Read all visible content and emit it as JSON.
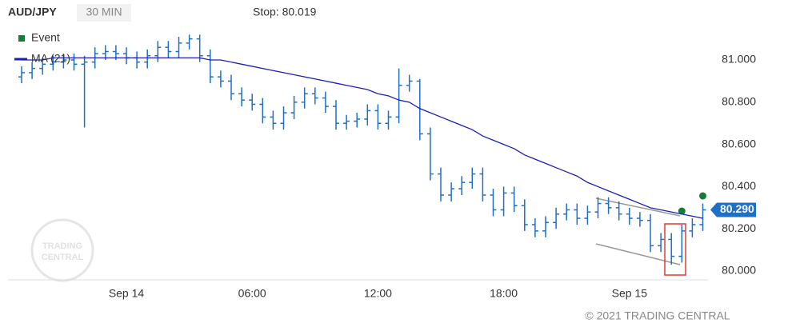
{
  "chart_data": {
    "type": "ohlc",
    "title": "AUD/JPY",
    "interval": "30 MIN",
    "stop_label": "Stop: 80.019",
    "watermark": [
      "TRADING",
      "CENTRAL"
    ],
    "copyright": "© 2021 TRADING CENTRAL",
    "categories": [
      null,
      null,
      null,
      null,
      null,
      null,
      null,
      null,
      null,
      null,
      "Sep 14",
      null,
      null,
      null,
      null,
      null,
      null,
      null,
      null,
      null,
      null,
      null,
      "06:00",
      null,
      null,
      null,
      null,
      null,
      null,
      null,
      null,
      null,
      null,
      null,
      "12:00",
      null,
      null,
      null,
      null,
      null,
      null,
      null,
      null,
      null,
      null,
      null,
      "18:00",
      null,
      null,
      null,
      null,
      null,
      null,
      null,
      null,
      null,
      null,
      null,
      "Sep 15",
      null,
      null,
      null,
      null,
      null,
      null,
      null
    ],
    "ohlc": {
      "color": "#1f6fc5",
      "open": [
        80.92,
        80.94,
        80.96,
        80.98,
        80.99,
        81.0,
        80.98,
        80.99,
        81.03,
        81.04,
        81.03,
        81.01,
        80.99,
        81.02,
        81.06,
        81.04,
        81.08,
        81.1,
        81.02,
        80.92,
        80.9,
        80.84,
        80.81,
        80.79,
        80.73,
        80.7,
        80.75,
        80.8,
        80.84,
        80.82,
        80.78,
        80.7,
        80.71,
        80.72,
        80.76,
        80.7,
        80.73,
        80.88,
        80.9,
        80.65,
        80.46,
        80.36,
        80.39,
        80.42,
        80.46,
        80.36,
        80.29,
        80.37,
        80.31,
        80.22,
        80.19,
        80.23,
        80.27,
        80.29,
        80.25,
        80.28,
        80.32,
        80.3,
        80.27,
        80.25,
        80.24,
        80.12,
        80.15,
        80.07,
        80.19,
        80.22
      ],
      "high": [
        80.97,
        80.99,
        81.01,
        81.02,
        81.03,
        81.03,
        81.02,
        81.06,
        81.07,
        81.07,
        81.06,
        81.04,
        81.05,
        81.09,
        81.09,
        81.11,
        81.12,
        81.12,
        81.05,
        80.95,
        80.93,
        80.87,
        80.84,
        80.82,
        80.76,
        80.78,
        80.83,
        80.87,
        80.87,
        80.85,
        80.81,
        80.74,
        80.75,
        80.79,
        80.79,
        80.76,
        80.96,
        80.93,
        80.91,
        80.68,
        80.49,
        80.42,
        80.45,
        80.49,
        80.49,
        80.39,
        80.4,
        80.4,
        80.34,
        80.25,
        80.26,
        80.3,
        80.32,
        80.32,
        80.31,
        80.35,
        80.35,
        80.33,
        80.3,
        80.28,
        80.27,
        80.18,
        80.18,
        80.22,
        80.25,
        80.32
      ],
      "low": [
        80.89,
        80.91,
        80.93,
        80.95,
        80.96,
        80.95,
        80.68,
        80.96,
        81.0,
        81.0,
        80.98,
        80.96,
        80.96,
        80.99,
        81.01,
        81.01,
        81.05,
        80.99,
        80.89,
        80.87,
        80.81,
        80.78,
        80.76,
        80.7,
        80.67,
        80.67,
        80.72,
        80.77,
        80.79,
        80.75,
        80.67,
        80.67,
        80.68,
        80.69,
        80.67,
        80.67,
        80.7,
        80.85,
        80.62,
        80.43,
        80.33,
        80.33,
        80.36,
        80.39,
        80.33,
        80.26,
        80.26,
        80.28,
        80.19,
        80.16,
        80.16,
        80.2,
        80.24,
        80.22,
        80.22,
        80.25,
        80.27,
        80.24,
        80.22,
        80.21,
        80.09,
        80.09,
        80.03,
        80.04,
        80.16,
        80.19
      ],
      "close": [
        80.94,
        80.96,
        80.98,
        80.99,
        81.0,
        80.98,
        80.99,
        81.03,
        81.04,
        81.03,
        81.01,
        80.99,
        81.02,
        81.06,
        81.04,
        81.08,
        81.1,
        81.02,
        80.92,
        80.9,
        80.84,
        80.81,
        80.79,
        80.73,
        80.7,
        80.75,
        80.8,
        80.84,
        80.82,
        80.78,
        80.7,
        80.71,
        80.72,
        80.76,
        80.7,
        80.73,
        80.88,
        80.9,
        80.65,
        80.46,
        80.36,
        80.39,
        80.42,
        80.46,
        80.36,
        80.29,
        80.37,
        80.31,
        80.22,
        80.19,
        80.23,
        80.27,
        80.29,
        80.25,
        80.28,
        80.32,
        80.3,
        80.27,
        80.25,
        80.24,
        80.12,
        80.15,
        80.07,
        80.19,
        80.22,
        80.29
      ]
    },
    "series": [
      {
        "name": "Event",
        "color": "#1a7a3a",
        "kind": "marker",
        "values": [
          null,
          null,
          null,
          null,
          null,
          null,
          null,
          null,
          null,
          null,
          null,
          null,
          null,
          null,
          null,
          null,
          null,
          null,
          null,
          null,
          null,
          null,
          null,
          null,
          null,
          null,
          null,
          null,
          null,
          null,
          null,
          null,
          null,
          null,
          null,
          null,
          null,
          null,
          null,
          null,
          null,
          null,
          null,
          null,
          null,
          null,
          null,
          null,
          null,
          null,
          null,
          null,
          null,
          null,
          null,
          null,
          null,
          null,
          null,
          null,
          null,
          null,
          null,
          80.284,
          null,
          80.356
        ]
      },
      {
        "name": "MA (21)",
        "color": "#1a1fb8",
        "kind": "line",
        "values": [
          81.0,
          81.0,
          81.0,
          81.01,
          81.01,
          81.01,
          81.01,
          81.01,
          81.01,
          81.01,
          81.01,
          81.01,
          81.01,
          81.01,
          81.01,
          81.01,
          81.01,
          81.01,
          81.0,
          81.0,
          80.99,
          80.98,
          80.97,
          80.96,
          80.95,
          80.94,
          80.93,
          80.92,
          80.91,
          80.9,
          80.89,
          80.88,
          80.87,
          80.86,
          80.84,
          80.83,
          80.81,
          80.8,
          80.77,
          80.75,
          80.73,
          80.71,
          80.69,
          80.67,
          80.64,
          80.62,
          80.6,
          80.58,
          80.55,
          80.53,
          80.51,
          80.49,
          80.47,
          80.45,
          80.42,
          80.4,
          80.38,
          80.36,
          80.34,
          80.32,
          80.3,
          80.29,
          80.28,
          80.27,
          80.26,
          80.25
        ]
      }
    ],
    "price_tag": {
      "value": 80.29,
      "label": "80.290"
    },
    "ylim": [
      79.96,
      81.13
    ],
    "yticks": [
      {
        "value": 80,
        "label": "80.000"
      },
      {
        "value": 80.2,
        "label": "80.200"
      },
      {
        "value": 80.4,
        "label": "80.400"
      },
      {
        "value": 80.6,
        "label": "80.600"
      },
      {
        "value": 80.8,
        "label": "80.800"
      },
      {
        "value": 81,
        "label": "81.000"
      }
    ],
    "grid": false
  }
}
